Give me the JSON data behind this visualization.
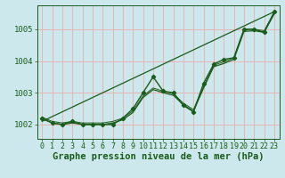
{
  "xlabel": "Graphe pression niveau de la mer (hPa)",
  "bg_color": "#cce8ec",
  "grid_color": "#e8b4b4",
  "line_color": "#1a5c1a",
  "xlim": [
    -0.5,
    23.5
  ],
  "ylim": [
    1001.55,
    1005.75
  ],
  "yticks": [
    1002,
    1003,
    1004,
    1005
  ],
  "xticks": [
    0,
    1,
    2,
    3,
    4,
    5,
    6,
    7,
    8,
    9,
    10,
    11,
    12,
    13,
    14,
    15,
    16,
    17,
    18,
    19,
    20,
    21,
    22,
    23
  ],
  "hours": [
    0,
    1,
    2,
    3,
    4,
    5,
    6,
    7,
    8,
    9,
    10,
    11,
    12,
    13,
    14,
    15,
    16,
    17,
    18,
    19,
    20,
    21,
    22,
    23
  ],
  "pressure": [
    1002.2,
    1002.05,
    1002.0,
    1002.1,
    1002.0,
    1002.0,
    1002.0,
    1002.0,
    1002.2,
    1002.5,
    1003.0,
    1003.5,
    1003.05,
    1003.0,
    1002.6,
    1002.4,
    1003.3,
    1003.9,
    1004.05,
    1004.1,
    1005.0,
    1005.0,
    1004.9,
    1005.55
  ],
  "trend_x": [
    0,
    23
  ],
  "trend_y": [
    1002.1,
    1005.55
  ],
  "smooth_line": [
    1002.18,
    1002.05,
    1002.0,
    1002.05,
    1002.0,
    1002.0,
    1002.0,
    1002.05,
    1002.15,
    1002.38,
    1002.85,
    1003.1,
    1003.0,
    1002.92,
    1002.62,
    1002.42,
    1003.15,
    1003.82,
    1003.92,
    1004.05,
    1004.93,
    1004.95,
    1004.9,
    1005.48
  ],
  "xlabel_fontsize": 7.5,
  "tick_fontsize": 6.0
}
